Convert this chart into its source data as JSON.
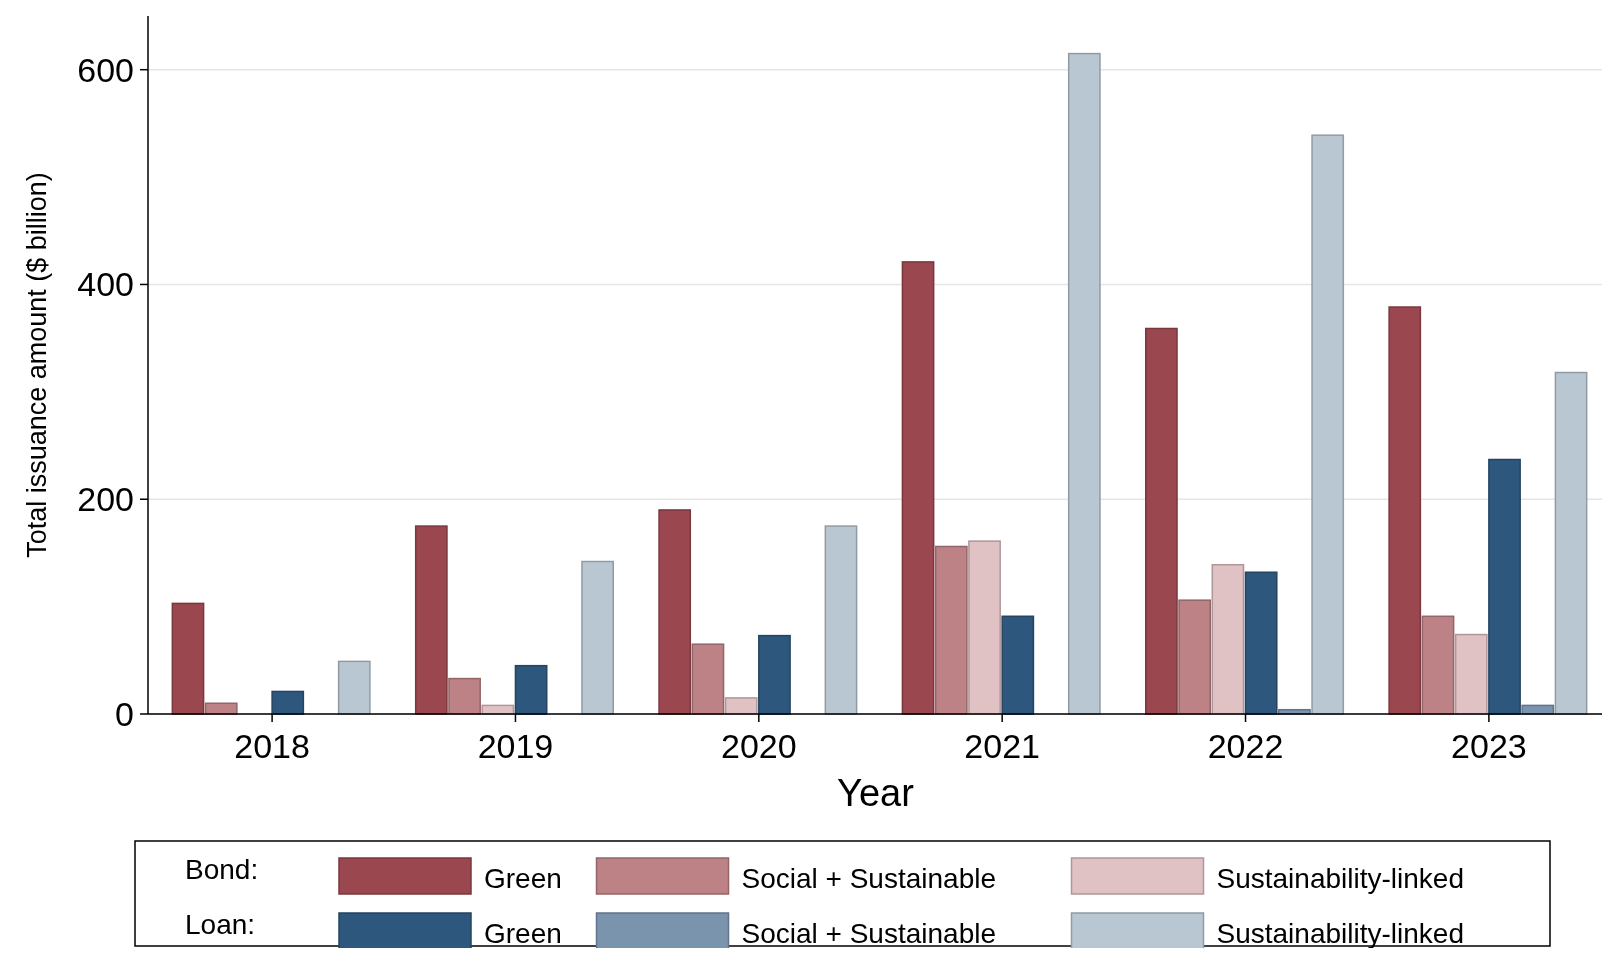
{
  "chart_data": {
    "type": "bar",
    "xlabel": "Year",
    "ylabel": "Total issuance amount ($ billion)",
    "categories": [
      "2018",
      "2019",
      "2020",
      "2021",
      "2022",
      "2023"
    ],
    "series": [
      {
        "name": "Green",
        "color": "#9b4750",
        "values": [
          103,
          175,
          190,
          421,
          359,
          379
        ]
      },
      {
        "name": "Social + Sustainable",
        "color": "#bd8285",
        "values": [
          10,
          33,
          65,
          156,
          106,
          91
        ]
      },
      {
        "name": "Sustainability-linked",
        "color": "#e0c1c4",
        "values": [
          0,
          8,
          15,
          161,
          139,
          74
        ]
      },
      {
        "name": "Green",
        "color": "#2e577d",
        "values": [
          21,
          45,
          73,
          91,
          132,
          237
        ]
      },
      {
        "name": "Social + Sustainable",
        "color": "#7b94ae",
        "values": [
          0,
          null,
          null,
          null,
          4,
          8
        ]
      },
      {
        "name": "Sustainability-linked",
        "color": "#b9c7d3",
        "values": [
          49,
          142,
          175,
          615,
          539,
          318
        ]
      }
    ],
    "annotations": [
      "Bond:",
      "Loan:"
    ],
    "ylim": [
      0,
      650
    ],
    "yticks": [
      0,
      200,
      400,
      600
    ],
    "grid": "y",
    "legend": "bottom"
  }
}
